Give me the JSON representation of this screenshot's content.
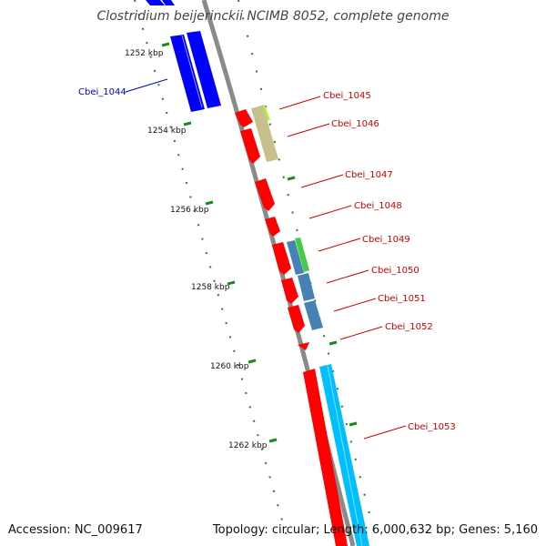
{
  "title": "Clostridium beijerinckii NCIMB 8052, complete genome",
  "accession": "Accession: NC_009617",
  "summary": "Topology: circular; Length: 6,000,632 bp; Genes: 5,160",
  "colors": {
    "backbone": "#8a8a8a",
    "ticks": "#1a8a1a",
    "forward_label": "#0000cc",
    "reverse_label": "#cc0000",
    "feature_red": "#ff0000",
    "feature_blue": "#0000ff",
    "feature_khaki": "#c8c08c",
    "feature_green": "#44cc44",
    "feature_yellowgreen": "#b4f03c",
    "feature_steelblue": "#4682b4",
    "feature_cyan": "#00bfff"
  },
  "ticks": [
    {
      "label": "1252 kbp"
    },
    {
      "label": "1254 kbp"
    },
    {
      "label": "1256 kbp"
    },
    {
      "label": "1258 kbp"
    },
    {
      "label": "1260 kbp"
    },
    {
      "label": "1262 kbp"
    }
  ],
  "genes": [
    {
      "name": "Cbei_1044",
      "side": "left"
    },
    {
      "name": "Cbei_1045",
      "side": "right"
    },
    {
      "name": "Cbei_1046",
      "side": "right"
    },
    {
      "name": "Cbei_1047",
      "side": "right"
    },
    {
      "name": "Cbei_1048",
      "side": "right"
    },
    {
      "name": "Cbei_1049",
      "side": "right"
    },
    {
      "name": "Cbei_1050",
      "side": "right"
    },
    {
      "name": "Cbei_1051",
      "side": "right"
    },
    {
      "name": "Cbei_1052",
      "side": "right"
    },
    {
      "name": "Cbei_1053",
      "side": "right"
    }
  ]
}
